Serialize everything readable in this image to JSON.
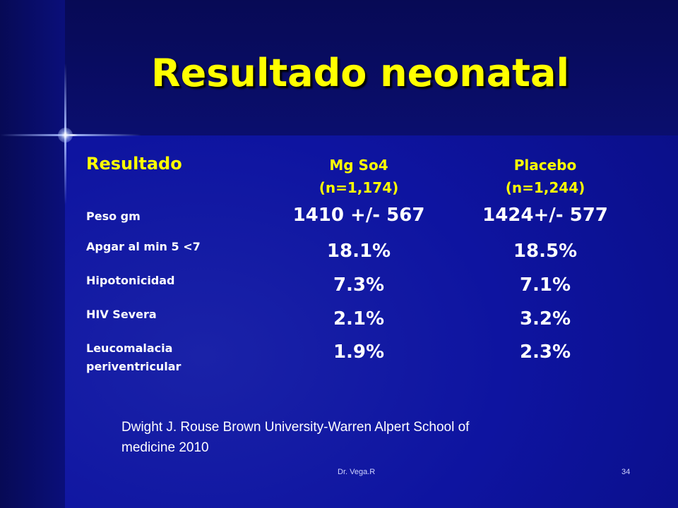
{
  "title": "Resultado neonatal",
  "table": {
    "header_label": "Resultado",
    "columns": [
      {
        "line1": "Mg So4",
        "line2": "(n=1,174)"
      },
      {
        "line1": "Placebo",
        "line2": "(n=1,244)"
      }
    ],
    "rows": [
      {
        "label": "Peso  gm",
        "mg": "1410 +/- 567",
        "placebo": "1424+/- 577"
      },
      {
        "label": "Apgar al min 5 <7",
        "mg": "18.1%",
        "placebo": "18.5%"
      },
      {
        "label": "Hipotonicidad",
        "mg": "7.3%",
        "placebo": "7.1%"
      },
      {
        "label": "HIV Severa",
        "mg": "2.1%",
        "placebo": "3.2%"
      },
      {
        "label_line1": "Leucomalacia",
        "label_line2": "periventricular",
        "mg": "1.9%",
        "placebo": "2.3%"
      }
    ]
  },
  "citation": {
    "line1": "Dwight J. Rouse Brown University-Warren Alpert School of",
    "line2": "medicine 2010"
  },
  "footer": {
    "author": "Dr. Vega.R",
    "page_number": "34"
  },
  "colors": {
    "title": "#ffff00",
    "background": "#0e14a0",
    "text": "#ffffff"
  }
}
